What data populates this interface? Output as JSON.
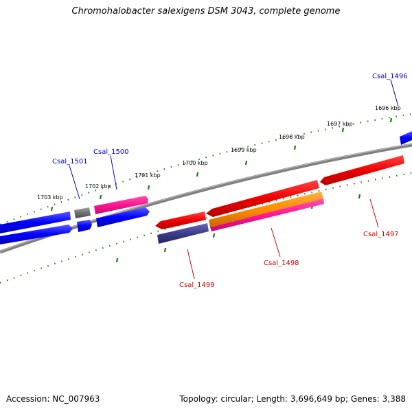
{
  "title": "Chromohalobacter salexigens DSM 3043, complete genome",
  "footer": {
    "accession": "Accession: NC_007963",
    "summary": "Topology: circular; Length: 3,696,649 bp; Genes: 3,388"
  },
  "scale_labels": [
    "1696 kbp",
    "1697 kbp",
    "1698 kbp",
    "1699 kbp",
    "1700 kbp",
    "1701 kbp",
    "1702 kbp",
    "1703 kbp"
  ],
  "gene_labels": {
    "Csal_1496": "Csal_1496",
    "Csal_1497": "Csal_1497",
    "Csal_1498": "Csal_1498",
    "Csal_1499": "Csal_1499",
    "Csal_1500": "Csal_1500",
    "Csal_1501": "Csal_1501"
  },
  "colors": {
    "forward_label": "#0000c8",
    "reverse_label": "#d40000",
    "backbone": "#808080",
    "ticks": "#1a7a1a",
    "blue_gene": "#0000ff",
    "red_gene": "#ee0000",
    "pink_gene": "#ff1493",
    "orange_gene": "#ff8c00",
    "navy_gene": "#3c3c8c",
    "gray_gene": "#707070"
  }
}
